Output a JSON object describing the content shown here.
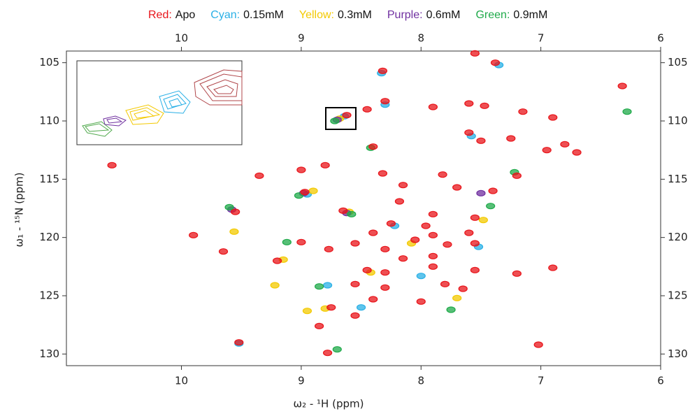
{
  "chart_data": {
    "type": "scatter",
    "xlabel": "ω₂ - ¹H (ppm)",
    "ylabel": "ω₁ - ¹⁵N (ppm)",
    "xlim": [
      10.96,
      6
    ],
    "ylim": [
      104,
      131
    ],
    "xticks": [
      10,
      9,
      8,
      7,
      6
    ],
    "yticks": [
      105,
      110,
      115,
      120,
      125,
      130
    ],
    "series": [
      {
        "label": "Cyan:",
        "name": "0.15mM",
        "color": "#2ab0e6",
        "x": [
          8.64,
          8.3,
          7.58,
          8.95,
          8.22,
          7.52,
          8.78,
          9.52,
          8.33,
          7.35,
          8.5,
          8.0
        ],
        "y": [
          109.6,
          108.6,
          111.3,
          116.3,
          119.0,
          120.8,
          124.1,
          129.1,
          105.9,
          105.2,
          126.0,
          123.3
        ]
      },
      {
        "label": "Yellow:",
        "name": "0.3mM",
        "color": "#f3c900",
        "x": [
          8.68,
          8.9,
          8.6,
          9.15,
          8.08,
          7.48,
          8.42,
          9.22,
          7.7,
          8.8,
          9.56,
          8.95
        ],
        "y": [
          109.8,
          116.0,
          117.8,
          121.9,
          120.5,
          118.5,
          123.0,
          124.1,
          125.2,
          126.1,
          119.5,
          126.3
        ]
      },
      {
        "label": "Purple:",
        "name": "0.6mM",
        "color": "#7030a0",
        "x": [
          8.7,
          8.98,
          8.62,
          9.58,
          7.5
        ],
        "y": [
          109.9,
          116.2,
          117.9,
          117.6,
          116.2
        ]
      },
      {
        "label": "Green:",
        "name": "0.9mM",
        "color": "#1faa4a",
        "x": [
          8.72,
          9.02,
          8.58,
          9.6,
          8.85,
          7.42,
          7.22,
          8.42,
          7.75,
          8.7,
          9.12,
          6.28
        ],
        "y": [
          110.0,
          116.4,
          118.0,
          117.4,
          124.2,
          117.3,
          114.4,
          112.3,
          126.2,
          129.6,
          120.4,
          109.2
        ]
      },
      {
        "label": "Red:",
        "name": "Apo",
        "color": "#e8141a",
        "x": [
          8.32,
          7.55,
          7.38,
          8.3,
          8.62,
          8.45,
          7.9,
          7.6,
          7.47,
          7.15,
          6.9,
          7.6,
          7.5,
          7.25,
          6.8,
          6.95,
          6.7,
          7.2,
          8.32,
          7.82,
          8.15,
          7.7,
          7.4,
          8.97,
          8.18,
          8.65,
          7.9,
          7.55,
          8.25,
          7.96,
          8.4,
          7.9,
          7.6,
          8.05,
          8.55,
          7.78,
          7.55,
          8.3,
          8.15,
          7.9,
          8.45,
          8.3,
          7.9,
          7.55,
          7.2,
          6.9,
          8.55,
          8.3,
          7.8,
          7.65,
          8.4,
          8.0,
          8.75,
          8.55,
          8.85,
          9.52,
          7.02,
          8.78,
          9.9,
          9.65,
          9.2,
          9.0,
          8.77,
          9.55,
          9.0,
          8.8,
          10.58,
          9.35,
          8.4,
          6.32
        ],
        "y": [
          105.7,
          104.2,
          105.0,
          108.3,
          109.5,
          109.0,
          108.8,
          108.5,
          108.7,
          109.2,
          109.7,
          111.0,
          111.7,
          111.5,
          112.0,
          112.5,
          112.7,
          114.7,
          114.5,
          114.6,
          115.5,
          115.7,
          116.0,
          116.1,
          116.9,
          117.7,
          118.0,
          118.3,
          118.8,
          119.0,
          119.6,
          119.8,
          119.6,
          120.2,
          120.5,
          120.6,
          120.5,
          121.0,
          121.8,
          121.6,
          122.8,
          123.0,
          122.5,
          122.8,
          123.1,
          122.6,
          124.0,
          124.3,
          124.0,
          124.4,
          125.3,
          125.5,
          126.0,
          126.7,
          127.6,
          129.0,
          129.2,
          129.9,
          119.8,
          121.2,
          122.0,
          120.4,
          121.0,
          117.8,
          114.2,
          113.8,
          113.8,
          114.7,
          112.2,
          107.0
        ]
      }
    ]
  }
}
